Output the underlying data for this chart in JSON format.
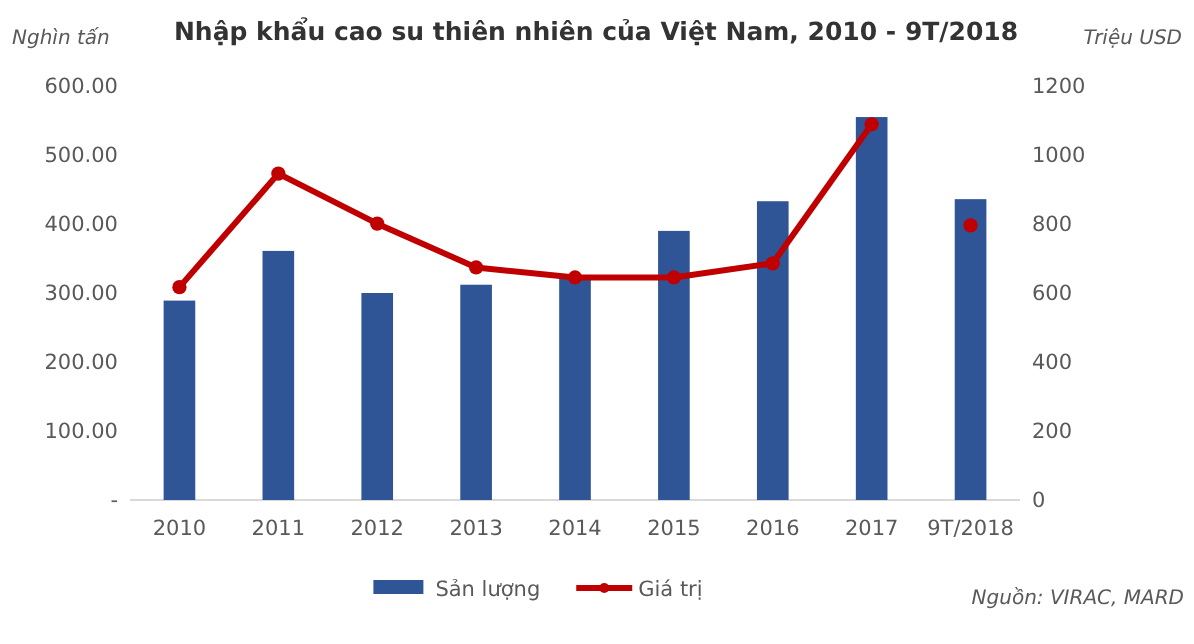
{
  "chart_data": {
    "type": "bar",
    "title": "Nhập khẩu cao su thiên nhiên của Việt Nam, 2010 - 9T/2018",
    "categories": [
      "2010",
      "2011",
      "2012",
      "2013",
      "2014",
      "2015",
      "2016",
      "2017",
      "9T/2018"
    ],
    "series": [
      {
        "name": "Sản lượng",
        "color": "#2f5597",
        "values": [
          289,
          361,
          300,
          312,
          325,
          390,
          433,
          555,
          436
        ]
      },
      {
        "name": "Giá trị",
        "type": "line",
        "axis": "y2",
        "color": "#c00000",
        "marker": "circle",
        "values": [
          617,
          946,
          801,
          674,
          645,
          645,
          686,
          1089,
          null
        ]
      },
      {
        "type": "scatter",
        "axis": "y2",
        "color": "#c00000",
        "marker": "circle",
        "values": [
          null,
          null,
          null,
          null,
          null,
          null,
          null,
          null,
          796
        ]
      }
    ],
    "ylabel": "Nghìn tấn",
    "y2label": "Triệu USD",
    "ylim": [
      0,
      600
    ],
    "yticks": [
      {
        "value": 0,
        "label": "-"
      },
      {
        "value": 100,
        "label": "100.00"
      },
      {
        "value": 200,
        "label": "200.00"
      },
      {
        "value": 300,
        "label": "300.00"
      },
      {
        "value": 400,
        "label": "400.00"
      },
      {
        "value": 500,
        "label": "500.00"
      },
      {
        "value": 600,
        "label": "600.00"
      }
    ],
    "y2lim": [
      0,
      1200
    ],
    "y2ticks": [
      0,
      200,
      400,
      600,
      800,
      1000,
      1200
    ],
    "legend": "bottom",
    "annotations": [
      "Nguồn: VIRAC, MARD"
    ]
  }
}
